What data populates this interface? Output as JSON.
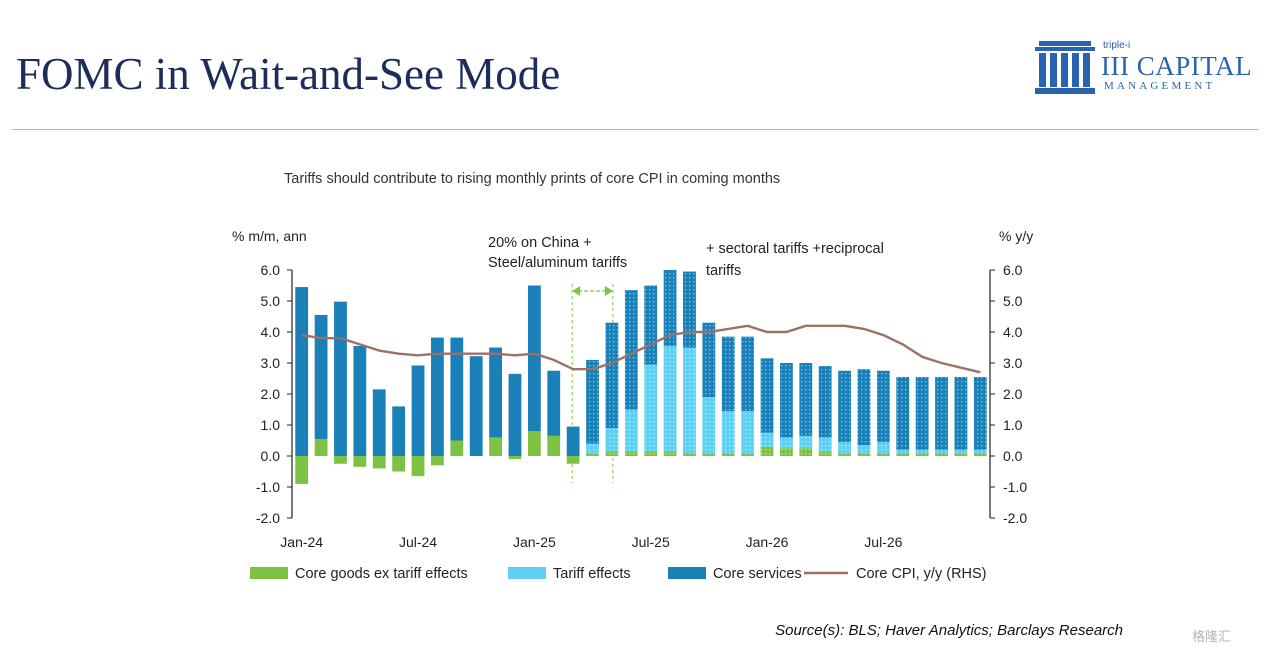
{
  "slide": {
    "title": "FOMC in Wait-and-See Mode",
    "logo": {
      "small": "triple-i",
      "main": "III CAPITAL",
      "sub": "MANAGEMENT"
    },
    "source": "Source(s): BLS; Haver Analytics; Barclays Research",
    "watermark": "格隆汇"
  },
  "colors": {
    "title": "#1c2c5b",
    "core_goods": "#7dc243",
    "tariff": "#5fd0f2",
    "core_services": "#1a80b8",
    "cpi_line": "#9b7168",
    "annotation_arrow": "#7dc243"
  },
  "chart_data": {
    "type": "bar",
    "stacked": true,
    "title": "Tariffs should contribute to rising monthly prints of core CPI in coming months",
    "ylabel": "% m/m, ann",
    "y2label": "% y/y",
    "ylim": [
      -2.0,
      6.0
    ],
    "y2lim": [
      -2.0,
      6.0
    ],
    "yticks": [
      "6.0",
      "5.0",
      "4.0",
      "3.0",
      "2.0",
      "1.0",
      "0.0",
      "-1.0",
      "-2.0"
    ],
    "xticklabels": [
      {
        "index": 0,
        "label": "Jan-24"
      },
      {
        "index": 6,
        "label": "Jul-24"
      },
      {
        "index": 12,
        "label": "Jan-25"
      },
      {
        "index": 18,
        "label": "Jul-25"
      },
      {
        "index": 24,
        "label": "Jan-26"
      },
      {
        "index": 30,
        "label": "Jul-26"
      }
    ],
    "categories": [
      "Jan-24",
      "Feb-24",
      "Mar-24",
      "Apr-24",
      "May-24",
      "Jun-24",
      "Jul-24",
      "Aug-24",
      "Sep-24",
      "Oct-24",
      "Nov-24",
      "Dec-24",
      "Jan-25",
      "Feb-25",
      "Mar-25",
      "Apr-25",
      "May-25",
      "Jun-25",
      "Jul-25",
      "Aug-25",
      "Sep-25",
      "Oct-25",
      "Nov-25",
      "Dec-25",
      "Jan-26",
      "Feb-26",
      "Mar-26",
      "Apr-26",
      "May-26",
      "Jun-26",
      "Jul-26",
      "Aug-26",
      "Sep-26",
      "Oct-26",
      "Nov-26",
      "Dec-26"
    ],
    "forecast_start_index": 15,
    "series": [
      {
        "name": "Core goods ex tariff effects",
        "type": "bar",
        "values": [
          -0.9,
          0.55,
          -0.25,
          -0.35,
          -0.4,
          -0.5,
          -0.65,
          -0.3,
          0.5,
          0.0,
          0.6,
          -0.1,
          0.8,
          0.65,
          -0.25,
          0.1,
          0.15,
          0.15,
          0.15,
          0.15,
          0.1,
          0.1,
          0.1,
          0.1,
          0.3,
          0.25,
          0.25,
          0.15,
          0.1,
          0.1,
          0.1,
          0.1,
          0.1,
          0.1,
          0.1,
          0.1
        ]
      },
      {
        "name": "Tariff effects",
        "type": "bar",
        "values": [
          0,
          0,
          0,
          0,
          0,
          0,
          0,
          0,
          0,
          0,
          0,
          0,
          0,
          0,
          0,
          0.3,
          0.75,
          1.35,
          2.8,
          3.4,
          3.4,
          1.8,
          1.35,
          1.35,
          0.45,
          0.35,
          0.4,
          0.45,
          0.35,
          0.25,
          0.35,
          0.1,
          0.1,
          0.1,
          0.1,
          0.1
        ]
      },
      {
        "name": "Core services",
        "type": "bar",
        "values": [
          5.45,
          4.0,
          4.98,
          3.55,
          2.15,
          1.6,
          2.92,
          3.82,
          3.32,
          3.22,
          2.9,
          2.65,
          4.7,
          2.1,
          0.95,
          2.7,
          3.4,
          3.85,
          2.55,
          2.45,
          2.45,
          2.4,
          2.4,
          2.4,
          2.4,
          2.4,
          2.35,
          2.3,
          2.3,
          2.45,
          2.3,
          2.35,
          2.35,
          2.35,
          2.35,
          2.35
        ]
      },
      {
        "name": "Core CPI, y/y (RHS)",
        "type": "line",
        "axis": "right",
        "values": [
          3.9,
          3.8,
          3.8,
          3.6,
          3.4,
          3.3,
          3.25,
          3.3,
          3.3,
          3.3,
          3.3,
          3.25,
          3.3,
          3.1,
          2.8,
          2.8,
          3.0,
          3.3,
          3.6,
          3.9,
          4.0,
          4.0,
          4.1,
          4.2,
          4.0,
          4.0,
          4.2,
          4.2,
          4.2,
          4.1,
          3.9,
          3.6,
          3.2,
          3.0,
          2.85,
          2.7
        ]
      }
    ],
    "annotations": [
      {
        "text_lines": [
          "20% on China +",
          "Steel/aluminum tariffs"
        ],
        "span": [
          14,
          16
        ]
      },
      {
        "text_lines": [
          "+ sectoral tariffs +reciprocal",
          "tariffs"
        ]
      }
    ],
    "legend": [
      "Core goods ex tariff effects",
      "Tariff effects",
      "Core services",
      "Core CPI, y/y (RHS)"
    ],
    "legend_position": "bottom"
  }
}
